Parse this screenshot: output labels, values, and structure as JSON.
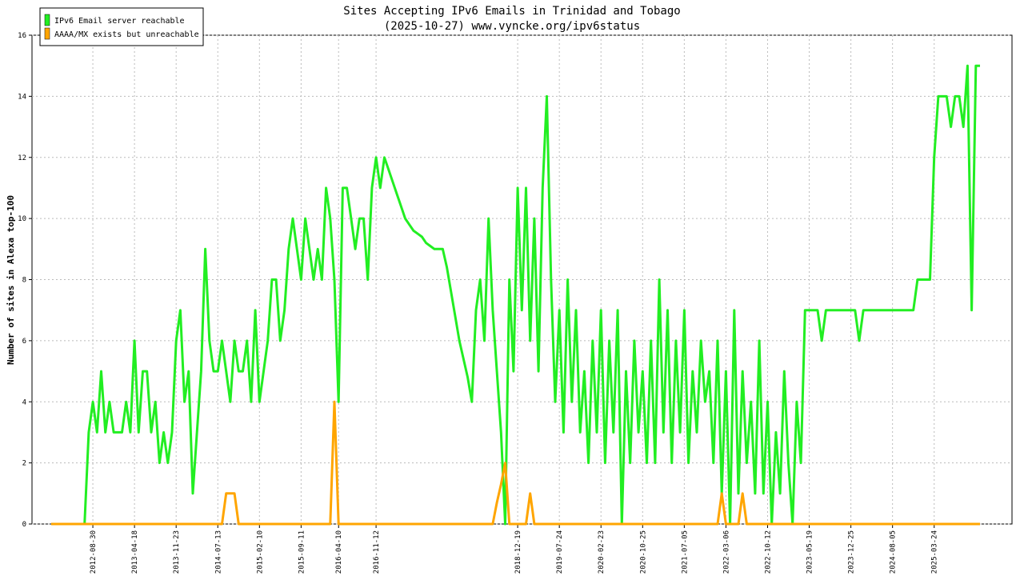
{
  "chart_data": {
    "type": "line",
    "title": "Sites Accepting IPv6 Emails in Trinidad and Tobago",
    "subtitle": "(2025-10-27) www.vyncke.org/ipv6status",
    "y_label": "Number of sites in Alexa top-100",
    "ylim": [
      0,
      16
    ],
    "yticks": [
      0,
      2,
      4,
      6,
      8,
      10,
      12,
      14,
      16
    ],
    "grid": true,
    "legend": "top-left",
    "categories": [
      null,
      null,
      null,
      null,
      null,
      null,
      null,
      null,
      null,
      null,
      "2012-08-30",
      null,
      null,
      null,
      null,
      null,
      null,
      null,
      null,
      null,
      "2013-04-18",
      null,
      null,
      null,
      null,
      null,
      null,
      null,
      null,
      null,
      "2013-11-23",
      null,
      null,
      null,
      null,
      null,
      null,
      null,
      null,
      null,
      "2014-07-13",
      null,
      null,
      null,
      null,
      null,
      null,
      null,
      null,
      null,
      "2015-02-10",
      null,
      null,
      null,
      null,
      null,
      null,
      null,
      null,
      null,
      "2015-09-11",
      null,
      null,
      null,
      null,
      null,
      null,
      null,
      null,
      "2016-04-10",
      null,
      null,
      null,
      null,
      null,
      null,
      null,
      null,
      "2016-11-12",
      null,
      null,
      null,
      null,
      null,
      null,
      null,
      null,
      null,
      null,
      null,
      null,
      null,
      null,
      null,
      null,
      null,
      null,
      null,
      null,
      null,
      null,
      null,
      null,
      null,
      null,
      null,
      null,
      null,
      null,
      null,
      null,
      null,
      "2018-12-19",
      null,
      null,
      null,
      null,
      null,
      null,
      null,
      null,
      null,
      "2019-07-24",
      null,
      null,
      null,
      null,
      null,
      null,
      null,
      null,
      null,
      "2020-02-23",
      null,
      null,
      null,
      null,
      null,
      null,
      null,
      null,
      null,
      "2020-10-25",
      null,
      null,
      null,
      null,
      null,
      null,
      null,
      null,
      null,
      "2021-07-05",
      null,
      null,
      null,
      null,
      null,
      null,
      null,
      null,
      null,
      "2022-03-06",
      null,
      null,
      null,
      null,
      null,
      null,
      null,
      null,
      null,
      "2022-10-12",
      null,
      null,
      null,
      null,
      null,
      null,
      null,
      null,
      null,
      "2023-05-19",
      null,
      null,
      null,
      null,
      null,
      null,
      null,
      null,
      null,
      "2023-12-25",
      null,
      null,
      null,
      null,
      null,
      null,
      null,
      null,
      null,
      "2024-08-05",
      null,
      null,
      null,
      null,
      null,
      null,
      null,
      null,
      null,
      "2025-03-24",
      null,
      null,
      null,
      null,
      null,
      null,
      null,
      null,
      null,
      null,
      null
    ],
    "series": [
      {
        "name": "IPv6 Email server reachable",
        "color": "#22ee22",
        "values": [
          null,
          null,
          null,
          null,
          null,
          null,
          null,
          null,
          0,
          3,
          4,
          3,
          5,
          3,
          4,
          3,
          3,
          3,
          4,
          3,
          6,
          3,
          5,
          5,
          3,
          4,
          2,
          3,
          2,
          3,
          6,
          7,
          4,
          5,
          1,
          3,
          5,
          9,
          6,
          5,
          5,
          6,
          5,
          4,
          6,
          5,
          5,
          6,
          4,
          7,
          4,
          5,
          6,
          8,
          8,
          6,
          7,
          9,
          10,
          9,
          8,
          10,
          9,
          8,
          9,
          8,
          11,
          10,
          8,
          4,
          11,
          11,
          10,
          9,
          10,
          10,
          8,
          11,
          12,
          11,
          12,
          11.6,
          11.2,
          10.8,
          10.4,
          10,
          9.8,
          9.6,
          9.5,
          9.4,
          9.2,
          9.1,
          9,
          9,
          9,
          8.4,
          7.6,
          6.8,
          6,
          5.4,
          4.8,
          4,
          7,
          8,
          6,
          10,
          7,
          5,
          3,
          0,
          8,
          5,
          11,
          7,
          11,
          6,
          10,
          5,
          11,
          14,
          8,
          4,
          7,
          3,
          8,
          4,
          7,
          3,
          5,
          2,
          6,
          3,
          7,
          2,
          6,
          3,
          7,
          0,
          5,
          2,
          6,
          3,
          5,
          2,
          6,
          2,
          8,
          3,
          7,
          2,
          6,
          3,
          7,
          2,
          5,
          3,
          6,
          4,
          5,
          2,
          6,
          1,
          5,
          0,
          7,
          1,
          5,
          2,
          4,
          1,
          6,
          1,
          4,
          0,
          3,
          1,
          5,
          2,
          0,
          4,
          2,
          7,
          7,
          7,
          7,
          6,
          7,
          7,
          7,
          7,
          7,
          7,
          7,
          7,
          6,
          7,
          7,
          7,
          7,
          7,
          7,
          7,
          7,
          7,
          7,
          7,
          7,
          7,
          8,
          8,
          8,
          8,
          12,
          14,
          14,
          14,
          13,
          14,
          14,
          13,
          15,
          7,
          15,
          15
        ]
      },
      {
        "name": "AAAA/MX exists but unreachable",
        "color": "#ffa500",
        "values": [
          0,
          0,
          0,
          0,
          0,
          0,
          0,
          0,
          0,
          0,
          0,
          0,
          0,
          0,
          0,
          0,
          0,
          0,
          0,
          0,
          0,
          0,
          0,
          0,
          0,
          0,
          0,
          0,
          0,
          0,
          0,
          0,
          0,
          0,
          0,
          0,
          0,
          0,
          0,
          0,
          0,
          0,
          1,
          1,
          1,
          0,
          0,
          0,
          0,
          0,
          0,
          0,
          0,
          0,
          0,
          0,
          0,
          0,
          0,
          0,
          0,
          0,
          0,
          0,
          0,
          0,
          0,
          0,
          4,
          0,
          0,
          0,
          0,
          0,
          0,
          0,
          0,
          0,
          0,
          0,
          0,
          0,
          0,
          0,
          0,
          0,
          0,
          0,
          0,
          0,
          0,
          0,
          0,
          0,
          0,
          0,
          0,
          0,
          0,
          0,
          0,
          0,
          0,
          0,
          0,
          0,
          0,
          0.7,
          1.3,
          2,
          0,
          0,
          0,
          0,
          0,
          1,
          0,
          0,
          0,
          0,
          0,
          0,
          0,
          0,
          0,
          0,
          0,
          0,
          0,
          0,
          0,
          0,
          0,
          0,
          0,
          0,
          0,
          0,
          0,
          0,
          0,
          0,
          0,
          0,
          0,
          0,
          0,
          0,
          0,
          0,
          0,
          0,
          0,
          0,
          0,
          0,
          0,
          0,
          0,
          0,
          0,
          1,
          0,
          0,
          0,
          0,
          1,
          0,
          0,
          0,
          0,
          0,
          0,
          0,
          0,
          0,
          0,
          0,
          0,
          0,
          0,
          0,
          0,
          0,
          0,
          0,
          0,
          0,
          0,
          0,
          0,
          0,
          0,
          0,
          0,
          0,
          0,
          0,
          0,
          0,
          0,
          0,
          0,
          0,
          0,
          0,
          0,
          0,
          0,
          0,
          0,
          0,
          0,
          0,
          0,
          0,
          0,
          0,
          0,
          0,
          0,
          0,
          0,
          0
        ]
      }
    ]
  }
}
